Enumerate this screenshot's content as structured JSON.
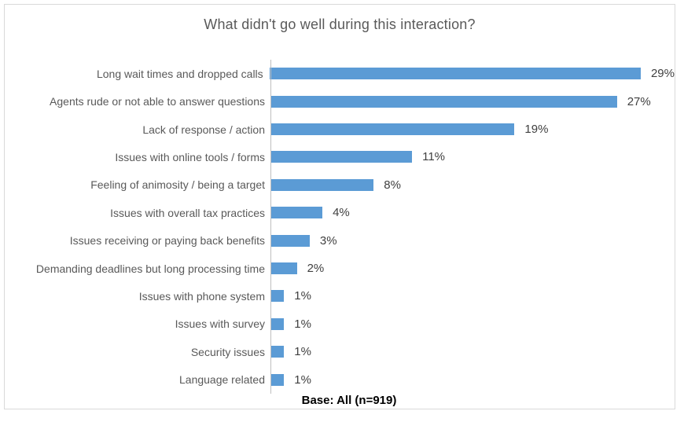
{
  "chart_data": {
    "type": "bar",
    "orientation": "horizontal",
    "title": "What didn't go well during this interaction?",
    "categories": [
      "Long wait times and dropped calls",
      "Agents rude or not able to answer questions",
      "Lack of response / action",
      "Issues with online tools / forms",
      "Feeling of animosity / being a target",
      "Issues with overall tax practices",
      "Issues receiving or paying back benefits",
      "Demanding deadlines but long processing time",
      "Issues with phone system",
      "Issues with survey",
      "Security issues",
      "Language related"
    ],
    "values": [
      29,
      27,
      19,
      11,
      8,
      4,
      3,
      2,
      1,
      1,
      1,
      1
    ],
    "value_labels": [
      "29%",
      "27%",
      "19%",
      "11%",
      "8%",
      "4%",
      "3%",
      "2%",
      "1%",
      "1%",
      "1%",
      "1%"
    ],
    "xlabel": "",
    "ylabel": "",
    "xlim": [
      0,
      31.5
    ],
    "grid": false,
    "legend": false,
    "footer": "Base: All (n=919)"
  },
  "colors": {
    "bar": "#5b9bd5",
    "title_text": "#595959",
    "label_text": "#595959",
    "value_text": "#404040",
    "axis_line": "#bfbfbf",
    "frame_border": "#d9d9d9",
    "footer_text": "#000000"
  }
}
